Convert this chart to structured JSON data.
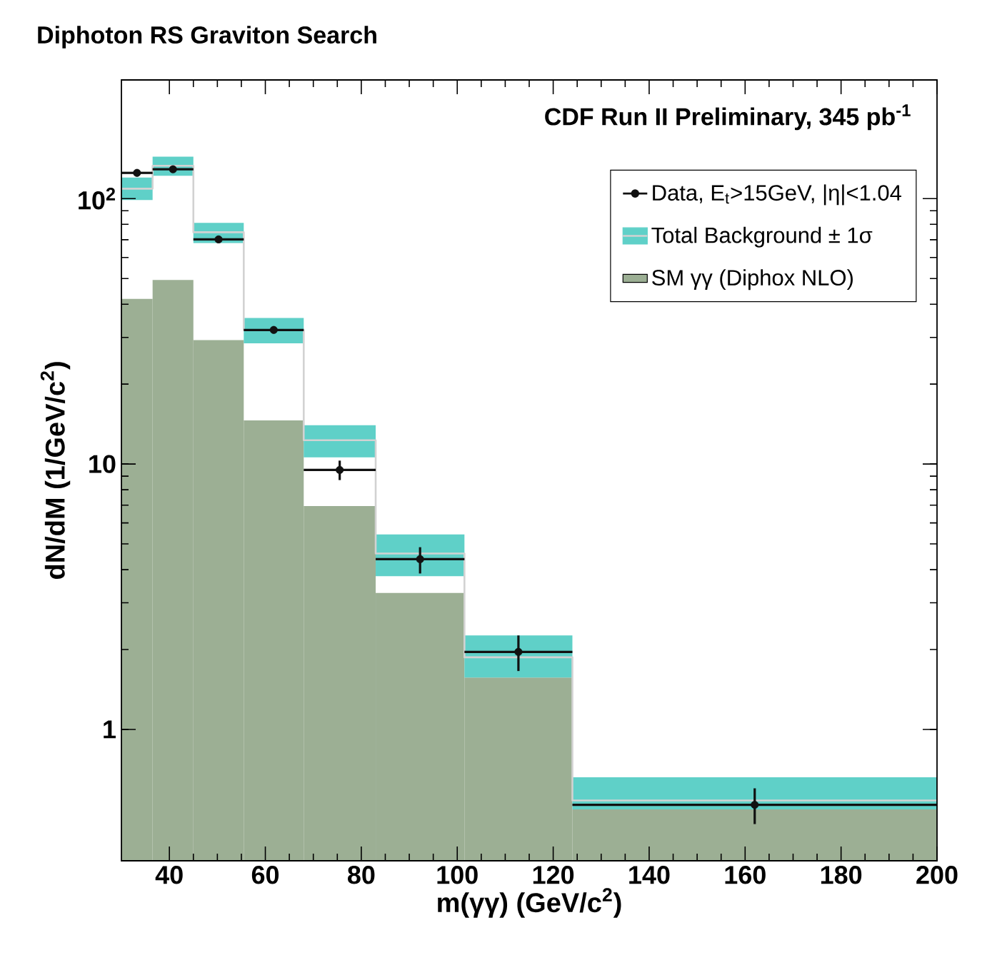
{
  "chart_data": {
    "type": "histogram",
    "title": "Diphoton RS Graviton Search",
    "xlabel": "m(γγ) (GeV/c$^{2}$)",
    "ylabel": "dN/dM (1/GeV/c$^{2}$)",
    "annotations": [
      "CDF Run II Preliminary, 345 pb$^{-1}$"
    ],
    "bins": [
      30,
      36.5,
      45,
      55.5,
      68,
      83,
      101.5,
      124,
      200
    ],
    "series": [
      {
        "name": "SM γγ (Diphox NLO)",
        "color": "#9caf94",
        "values": [
          41.9,
          49.4,
          29.3,
          14.6,
          6.95,
          3.27,
          1.57,
          0.5
        ]
      },
      {
        "name": "Total Background ± 1σ",
        "type": "step",
        "color": "#d2d2d2",
        "x": [
          30,
          36.5,
          45,
          55.5,
          68,
          83,
          101.5,
          124,
          200
        ],
        "values": [
          109,
          133,
          74.7,
          32,
          12.3,
          4.6,
          1.87,
          0.54,
          0.54
        ],
        "lower": [
          98.8,
          122,
          68,
          28.5,
          10.6,
          3.78,
          1.57,
          0.5,
          0.5
        ],
        "upper": [
          120,
          144,
          81,
          35.5,
          14.0,
          5.43,
          2.26,
          0.66,
          0.66
        ]
      },
      {
        "name": "Data, E$_{t}$>15GeV, |η|<1.04",
        "type": "scatter",
        "color": "#111111",
        "marker": "circle",
        "x": [
          33.25,
          40.75,
          50.25,
          61.75,
          75.5,
          92.25,
          112.75,
          162
        ],
        "values": [
          125,
          129,
          70.2,
          32,
          9.5,
          4.38,
          1.96,
          0.52
        ],
        "errors": [
          null,
          null,
          null,
          null,
          [
            8.7,
            10.3
          ],
          [
            3.87,
            4.86
          ],
          [
            1.66,
            2.26
          ],
          [
            0.44,
            0.6
          ]
        ],
        "xerrors": [
          3.25,
          4.25,
          5.25,
          6.25,
          7.5,
          9.25,
          11.25,
          38
        ]
      }
    ],
    "xlim": [
      30,
      200
    ],
    "ylim": [
      0.32,
      280
    ],
    "xticks": [
      40,
      60,
      80,
      100,
      120,
      140,
      160,
      180,
      200
    ],
    "yticks": [
      1,
      10,
      {
        "value": 100,
        "label": "10$^{2}$"
      }
    ],
    "log": true,
    "legend": "top right"
  }
}
